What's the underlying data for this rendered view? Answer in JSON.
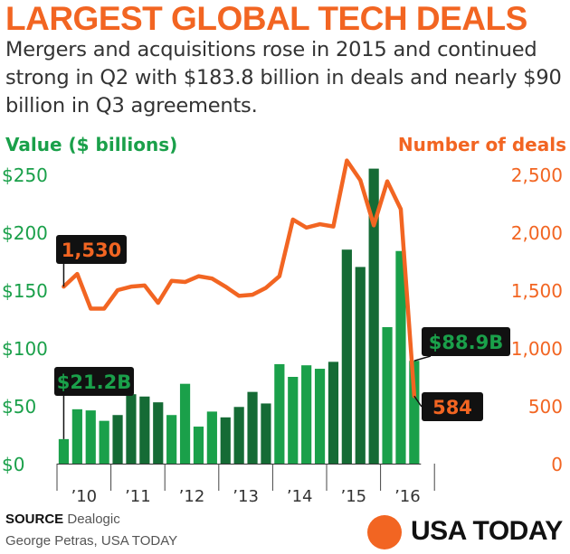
{
  "header": {
    "title": "LARGEST GLOBAL TECH DEALS",
    "subtitle": "Mergers and acquisitions rose in 2015 and continued strong in Q2 with $183.8 billion in deals and nearly $90 billion in Q3 agreements."
  },
  "colors": {
    "accent": "#f26522",
    "green_light": "#1aa04a",
    "green_dark": "#156b35",
    "label_bg": "#111111"
  },
  "chart_data": {
    "type": "bar+line",
    "left_axis_title": "Value ($ billions)",
    "right_axis_title": "Number of deals",
    "left_ticks": [
      "$0",
      "$50",
      "$100",
      "$150",
      "$200",
      "$250"
    ],
    "left_tick_values": [
      0,
      50,
      100,
      150,
      200,
      250
    ],
    "right_ticks": [
      "0",
      "500",
      "1,000",
      "1,500",
      "2,000",
      "2,500"
    ],
    "right_tick_values": [
      0,
      500,
      1000,
      1500,
      2000,
      2500
    ],
    "ylim_value": [
      0,
      260
    ],
    "ylim_deals": [
      0,
      2600
    ],
    "x_labels": [
      "’10",
      "’11",
      "’12",
      "’13",
      "’14",
      "’15",
      "’16"
    ],
    "quarters": [
      "2010 Q1",
      "2010 Q2",
      "2010 Q3",
      "2010 Q4",
      "2011 Q1",
      "2011 Q2",
      "2011 Q3",
      "2011 Q4",
      "2012 Q1",
      "2012 Q2",
      "2012 Q3",
      "2012 Q4",
      "2013 Q1",
      "2013 Q2",
      "2013 Q3",
      "2013 Q4",
      "2014 Q1",
      "2014 Q2",
      "2014 Q3",
      "2014 Q4",
      "2015 Q1",
      "2015 Q2",
      "2015 Q3",
      "2015 Q4",
      "2016 Q1",
      "2016 Q2",
      "2016 Q3"
    ],
    "series": [
      {
        "name": "Value ($ billions)",
        "kind": "bar",
        "values": [
          21.2,
          47,
          46,
          37,
          42,
          60,
          58,
          53,
          42,
          69,
          32,
          45,
          40,
          49,
          62,
          52,
          86,
          75,
          85,
          82,
          88,
          185,
          170,
          255,
          118,
          183.8,
          88.9
        ]
      },
      {
        "name": "Number of deals",
        "kind": "line",
        "values": [
          1530,
          1640,
          1340,
          1340,
          1500,
          1530,
          1540,
          1390,
          1580,
          1570,
          1620,
          1600,
          1530,
          1450,
          1460,
          1520,
          1620,
          2110,
          2040,
          2070,
          2050,
          2620,
          2450,
          2060,
          2440,
          2200,
          584
        ]
      }
    ],
    "callouts": [
      {
        "text": "$21.2B",
        "series": "Value ($ billions)",
        "index": 0,
        "style": "green"
      },
      {
        "text": "1,530",
        "series": "Number of deals",
        "index": 0,
        "style": "orange"
      },
      {
        "text": "$88.9B",
        "series": "Value ($ billions)",
        "index": 26,
        "style": "green"
      },
      {
        "text": "584",
        "series": "Number of deals",
        "index": 26,
        "style": "orange"
      }
    ]
  },
  "footer": {
    "source_label": "SOURCE",
    "source_text": "Dealogic",
    "credit": "George Petras, USA TODAY",
    "logo_text": "USA TODAY"
  }
}
